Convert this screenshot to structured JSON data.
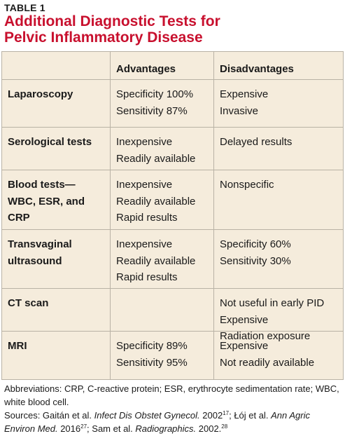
{
  "table_label": "TABLE 1",
  "title_lines": [
    "Additional Diagnostic Tests for",
    "Pelvic Inflammatory Disease"
  ],
  "headers": [
    "",
    "Advantages",
    "Disadvantages"
  ],
  "rows": [
    {
      "test": [
        "Laparoscopy"
      ],
      "advantages": [
        "Specificity 100%",
        "Sensitivity 87%"
      ],
      "disadvantages": [
        "Expensive",
        "Invasive"
      ]
    },
    {
      "test": [
        "Serological tests"
      ],
      "advantages": [
        "Inexpensive",
        "Readily available"
      ],
      "disadvantages": [
        "Delayed results"
      ]
    },
    {
      "test": [
        "Blood tests—",
        "WBC, ESR, and",
        "CRP"
      ],
      "advantages": [
        "Inexpensive",
        "Readily available",
        "Rapid results"
      ],
      "disadvantages": [
        "Nonspecific"
      ]
    },
    {
      "test": [
        "Transvaginal",
        "ultrasound"
      ],
      "advantages": [
        "Inexpensive",
        "Readily available",
        "Rapid results"
      ],
      "disadvantages": [
        "Specificity 60%",
        "Sensitivity 30%"
      ]
    },
    {
      "test": [
        "CT scan"
      ],
      "advantages": [],
      "disadvantages": [
        "Not useful in early PID",
        "Expensive",
        "Radiation exposure"
      ]
    },
    {
      "test": [
        "MRI"
      ],
      "advantages": [
        "Specificity 89%",
        "Sensitivity 95%"
      ],
      "disadvantages": [
        "Expensive",
        "Not readily available"
      ]
    }
  ],
  "footer": {
    "abbreviations": "Abbreviations: CRP, C-reactive protein; ESR, erythrocyte sedimentation rate; WBC, white blood cell.",
    "sources_prefix": "Sources: Gaitán et al. ",
    "source1_journal": "Infect Dis Obstet Gynecol.",
    "source1_year": " 2002",
    "source1_ref": "17",
    "source2_authors": "; Łój et al. ",
    "source2_journal": "Ann Agric Environ Med.",
    "source2_year": " 2016",
    "source2_ref": "27",
    "source3_authors": "; Sam et al. ",
    "source3_journal": "Radiographics.",
    "source3_year": " 2002.",
    "source3_ref": "28"
  },
  "colors": {
    "title": "#c8102e",
    "table_background": "#f5ecdc",
    "rule": "#b9b2a5"
  }
}
